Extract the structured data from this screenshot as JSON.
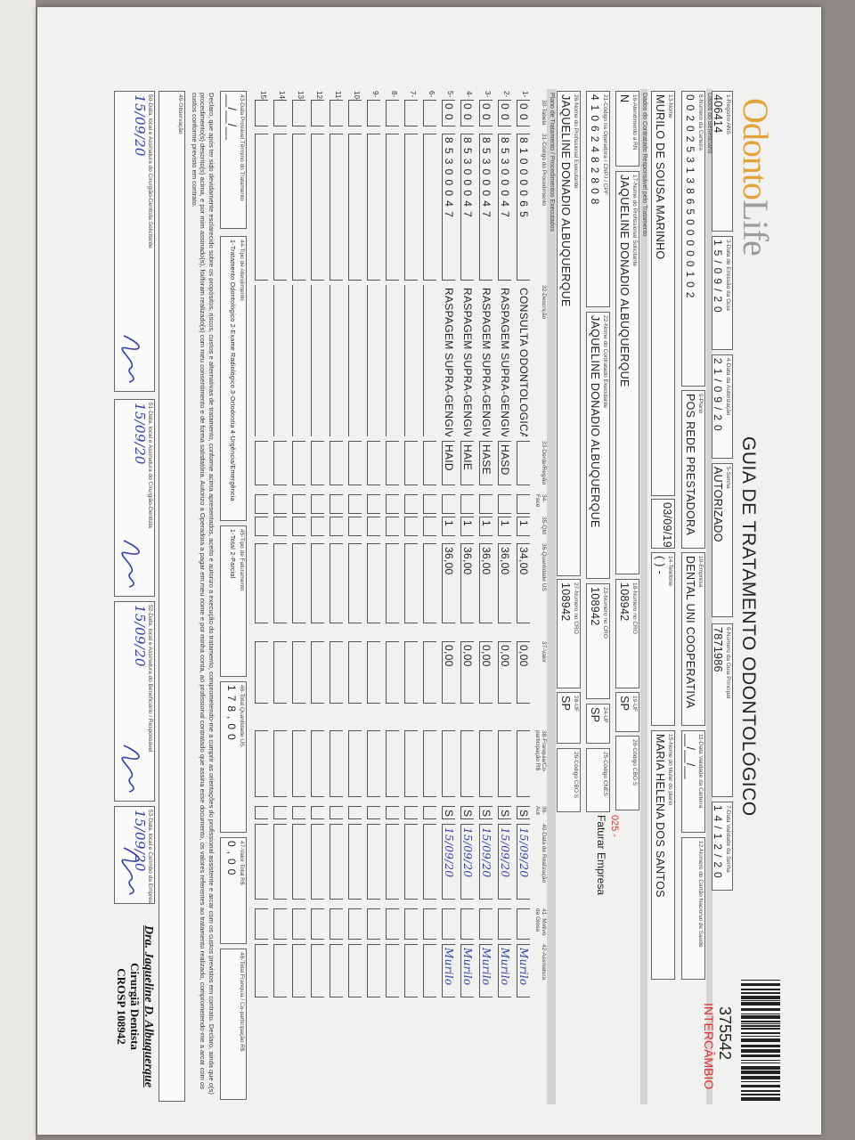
{
  "header": {
    "logo_main": "Odonto",
    "logo_accent": "Life",
    "title": "GUIA DE TRATAMENTO ODONTOLÓGICO",
    "barcode_number": "375542",
    "barcode_tag": "INTERCÂMBIO"
  },
  "sections": {
    "beneficiary": "Dados do Beneficiário",
    "contracted": "Dados do Contratado Responsável pelo Tratamento",
    "plan": "Plano de Tratamento / Procedimentos Executados"
  },
  "fields": {
    "f1": {
      "label": "1-Registro ANS",
      "value": "406414"
    },
    "f3": {
      "label": "3-Data de Emissão da Guia",
      "value": "15/09/20"
    },
    "f4": {
      "label": "4-Data da Autorização",
      "value": "21/09/20"
    },
    "f5": {
      "label": "5-Senha",
      "value": "AUTORIZADO"
    },
    "f6": {
      "label": "6-Número da Guia Principal",
      "value": "7871986"
    },
    "f7": {
      "label": "7-Data Validade da Senha",
      "value": "14/12/20"
    },
    "f8": {
      "label": "8-Número da Carteira",
      "value": "00202531386500000102"
    },
    "f9": {
      "label": "9-Plano",
      "value": "POS REDE PRESTADORA"
    },
    "f10": {
      "label": "10-Empresa",
      "value": "DENTAL UNI COOPERATIVA"
    },
    "f11": {
      "label": "11-Data Validade da Carteira",
      "value": "__/__/__"
    },
    "f12": {
      "label": "12-Número do Cartão Nacional de Saúde",
      "value": ""
    },
    "f13": {
      "label": "13-Nome",
      "value": "MURILO DE SOUSA MARINHO"
    },
    "fbirth": {
      "label": "",
      "value": "03/09/1977"
    },
    "f14": {
      "label": "14-Telefone",
      "value": "(   )       -"
    },
    "f15": {
      "label": "15-Nome do titular do plano",
      "value": "MARIA HELENA DOS SANTOS"
    },
    "f16": {
      "label": "16-Atendimento a RN",
      "value": "N"
    },
    "f17": {
      "label": "17-Nome do Profissional Solicitante",
      "value": "JAQUELINE DONADIO ALBUQUERQUE"
    },
    "f18": {
      "label": "18-Número no CRO",
      "value": "108942"
    },
    "f19": {
      "label": "19-UF",
      "value": "SP"
    },
    "f20": {
      "label": "20-Código CBO S",
      "value": ""
    },
    "f21": {
      "label": "21-Código na Operadora / CNPJ / CPF",
      "value": "41062482808"
    },
    "f22": {
      "label": "22-Nome do Contratado Executante",
      "value": "JAQUELINE DONADIO ALBUQUERQUE"
    },
    "f23": {
      "label": "23-Número no CRO",
      "value": "108942"
    },
    "f24": {
      "label": "24-UF",
      "value": "SP"
    },
    "f25": {
      "label": "25-Código CNES",
      "value": ""
    },
    "f26": {
      "label": "26-Nome do Profissional Executante",
      "value": "JAQUELINE DONADIO ALBUQUERQUE"
    },
    "f27": {
      "label": "27-Número no CRO",
      "value": "108942"
    },
    "f28": {
      "label": "28-UF",
      "value": "SP"
    },
    "f29": {
      "label": "29-Código CBO S",
      "value": ""
    },
    "f43": {
      "label": "43-Data Provável Término do Tratamento",
      "value": "__/__/__"
    },
    "f44": {
      "label": "44-Tipo de Atendimento",
      "value": "1-Tratamento Odontológico 2-Exame Radiológico 3-Ortodontia 4-Urgência/Emergência"
    },
    "f45": {
      "label": "45-Tipo de Faturamento",
      "value": "1-Total 2-Parcial"
    },
    "f46": {
      "label": "46-Total Quantidade US",
      "value": "178,00"
    },
    "f47": {
      "label": "47-Valor Total R$",
      "value": "0,00"
    },
    "f48": {
      "label": "48-Total Franquia / Co-participação R$",
      "value": ""
    },
    "f49": {
      "label": "49-Observação",
      "value": ""
    },
    "f50": {
      "label": "50-Data, local e Assinatura do Cirurgião-Dentista Solicitante",
      "value": "15/09/20"
    },
    "f51": {
      "label": "51-Data, local e Assinatura do Cirurgião-Dentista",
      "value": "15/09/20"
    },
    "f52": {
      "label": "52-Data, local e Assinatura do Beneficiário / Responsável",
      "value": "15/09/20"
    },
    "f53": {
      "label": "53-Data, local e Carimbo da Empresa",
      "value": "15/09/20"
    }
  },
  "billing_note": {
    "code": "025 -",
    "text": "Faturar Empresa"
  },
  "procedures": {
    "columns": [
      "30-Tabela",
      "31-Código do Procedimento",
      "32-Descrição",
      "33-Dente/Região",
      "34-Face",
      "35-Qtd",
      "36-Quantidade US",
      "37-Valor",
      "38-Franquia/Co-participação R$",
      "39-Aut",
      "40-Data de Realização",
      "41- Motivo da Glosa",
      "42-Assinatura"
    ],
    "row_count": 15,
    "rows": [
      {
        "table": "00",
        "code": "81000065",
        "description": "CONSULTA ODONTOLOGICA",
        "tooth": "",
        "face": "",
        "qty": "1",
        "us": "34,00",
        "value": "0,00",
        "copay": "",
        "aut": "S",
        "date": "15/09/20",
        "gloss": "",
        "signature": "Murilo"
      },
      {
        "table": "00",
        "code": "85300047",
        "description": "RASPAGEM SUPRA-GENGIVAL",
        "tooth": "HASD",
        "face": "",
        "qty": "1",
        "us": "36,00",
        "value": "0,00",
        "copay": "",
        "aut": "S",
        "date": "15/09/20",
        "gloss": "",
        "signature": "Murilo"
      },
      {
        "table": "00",
        "code": "85300047",
        "description": "RASPAGEM SUPRA-GENGIVAL",
        "tooth": "HASE",
        "face": "",
        "qty": "1",
        "us": "36,00",
        "value": "0,00",
        "copay": "",
        "aut": "S",
        "date": "15/09/20",
        "gloss": "",
        "signature": "Murilo"
      },
      {
        "table": "00",
        "code": "85300047",
        "description": "RASPAGEM SUPRA-GENGIVAL",
        "tooth": "HAIE",
        "face": "",
        "qty": "1",
        "us": "36,00",
        "value": "0,00",
        "copay": "",
        "aut": "S",
        "date": "15/09/20",
        "gloss": "",
        "signature": "Murilo"
      },
      {
        "table": "00",
        "code": "85300047",
        "description": "RASPAGEM SUPRA-GENGIVAL",
        "tooth": "HAID",
        "face": "",
        "qty": "1",
        "us": "36,00",
        "value": "0,00",
        "copay": "",
        "aut": "S",
        "date": "15/09/20",
        "gloss": "",
        "signature": "Murilo"
      }
    ]
  },
  "declaration": "Declaro, que após ter sido devidamente esclarecido sobre os propósitos, riscos, custos e alternativas de tratamento, conforme acima apresentados, aceito e autorizo a execução do tratamento, comprometendo-me a cumprir as orientações do profissional assistente e arcar com os custos previstos em contrato. Declaro, ainda que o(s) procedimento(s) descrito(s) acima, e por mim assinado(s), foi/foram realizado(s) com meu consentimento e de forma satisfatória. Autorizo a Operadora a pagar em meu nome e por minha conta, ao profissional contratado que assina esse documento, os valores referentes ao tratamento realizado, comprometendo-me a arcar com os custos conforme previsto em contrato.",
  "stamp": {
    "name": "Dra. Jaqueline D. Albuquerque",
    "role": "Cirurgiã Dentista",
    "registry": "CROSP 108942"
  },
  "colors": {
    "logo_orange": "#e5a23a",
    "alert_red": "#e03030",
    "ink_blue": "#3340a8",
    "band_gray": "#d4d4d2"
  }
}
